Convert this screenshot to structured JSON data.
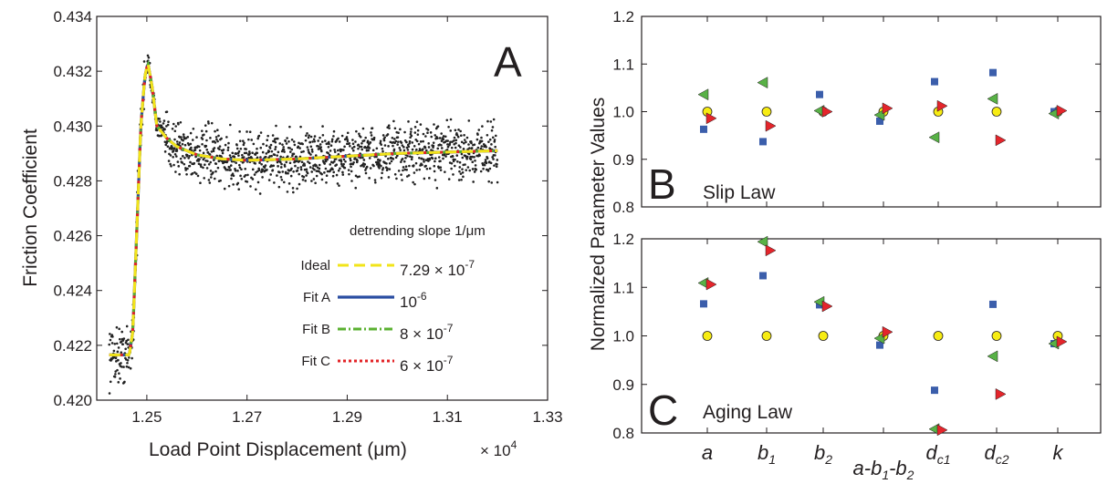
{
  "colors": {
    "ideal": "#f2e41a",
    "fitA": "#2b4ea2",
    "fitB": "#5ab030",
    "fitC": "#e32226",
    "data_points": "#222222",
    "ideal_marker": "#f7ec13",
    "blue_marker": "#3b5eab",
    "green_marker": "#58b146",
    "red_marker": "#e4252b"
  },
  "chart_data": [
    {
      "type": "line",
      "panel": "A",
      "xlabel": "Load Point Displacement (μm)",
      "x_multiplier": "× 10^4",
      "ylabel": "Friction Coefficient",
      "xlim": [
        1.24,
        1.33
      ],
      "ylim": [
        0.42,
        0.434
      ],
      "xticks": [
        "1.25",
        "1.27",
        "1.29",
        "1.31",
        "1.33"
      ],
      "yticks": [
        "0.420",
        "0.422",
        "0.424",
        "0.426",
        "0.428",
        "0.430",
        "0.432",
        "0.434"
      ],
      "legend": {
        "header": "detrending slope 1/μm",
        "placement": "bottom-right",
        "entries": [
          {
            "name": "Ideal",
            "slope": "7.29 × 10",
            "exp": "-7"
          },
          {
            "name": "Fit A",
            "slope": "10",
            "exp": "-6"
          },
          {
            "name": "Fit B",
            "slope": "8 × 10",
            "exp": "-7"
          },
          {
            "name": "Fit C",
            "slope": "6 × 10",
            "exp": "-7"
          }
        ]
      },
      "model_curve": {
        "x": [
          1.2425,
          1.2465,
          1.2472,
          1.248,
          1.2488,
          1.2496,
          1.2502,
          1.251,
          1.252,
          1.254,
          1.256,
          1.26,
          1.265,
          1.27,
          1.28,
          1.29,
          1.3,
          1.31,
          1.32
        ],
        "y": [
          0.42165,
          0.42165,
          0.4225,
          0.4262,
          0.43,
          0.4318,
          0.4323,
          0.4315,
          0.43,
          0.42955,
          0.42925,
          0.42895,
          0.4288,
          0.42875,
          0.4288,
          0.4289,
          0.429,
          0.42905,
          0.4291
        ]
      },
      "measured_data": {
        "x_start": 1.2425,
        "x_end": 1.32,
        "noise_amplitude": 0.0005
      }
    },
    {
      "type": "scatter",
      "panel": "B",
      "title": "Slip Law",
      "ylabel": "Normalized Parameter Values",
      "ylim": [
        0.8,
        1.2
      ],
      "yticks": [
        "0.8",
        "0.9",
        "1.0",
        "1.1",
        "1.2"
      ],
      "categories": [
        "a",
        "b1",
        "b2",
        "a-b1-b2",
        "dc1",
        "dc2",
        "k"
      ],
      "series": [
        {
          "marker": "circle",
          "color": "ideal",
          "values": [
            1.0,
            1.0,
            1.0,
            1.0,
            1.0,
            1.0,
            1.0
          ]
        },
        {
          "marker": "square",
          "color": "blue",
          "values": [
            0.963,
            0.937,
            1.036,
            0.98,
            1.063,
            1.082,
            1.0
          ]
        },
        {
          "marker": "triangle-left",
          "color": "green",
          "values": [
            1.036,
            1.061,
            1.002,
            0.993,
            0.946,
            1.027,
            0.996
          ]
        },
        {
          "marker": "triangle-right",
          "color": "red",
          "values": [
            0.986,
            0.97,
            1.0,
            1.007,
            1.012,
            0.94,
            1.002
          ]
        }
      ]
    },
    {
      "type": "scatter",
      "panel": "C",
      "title": "Aging Law",
      "ylim": [
        0.8,
        1.2
      ],
      "yticks": [
        "0.8",
        "0.9",
        "1.0",
        "1.1",
        "1.2"
      ],
      "categories": [
        "a",
        "b1",
        "b2",
        "a-b1-b2",
        "dc1",
        "dc2",
        "k"
      ],
      "series": [
        {
          "marker": "circle",
          "color": "ideal",
          "values": [
            1.0,
            1.0,
            1.0,
            1.0,
            1.0,
            1.0,
            1.0
          ]
        },
        {
          "marker": "square",
          "color": "blue",
          "values": [
            1.066,
            1.124,
            1.064,
            0.981,
            0.888,
            1.065,
            0.984
          ]
        },
        {
          "marker": "triangle-left",
          "color": "green",
          "values": [
            1.109,
            1.194,
            1.07,
            0.995,
            0.808,
            0.958,
            0.984
          ]
        },
        {
          "marker": "triangle-right",
          "color": "red",
          "values": [
            1.106,
            1.176,
            1.061,
            1.008,
            0.806,
            0.88,
            0.988
          ]
        }
      ]
    }
  ],
  "labels": {
    "panelA": "A",
    "panelB": "B",
    "panelC": "C",
    "slipLaw": "Slip Law",
    "agingLaw": "Aging Law",
    "xlabelA": "Load Point Displacement (μm)",
    "xmult": "× 10",
    "xmultExp": "4",
    "ylabelA": "Friction Coefficient",
    "ylabelRight": "Normalized Parameter Values",
    "legendHeader": "detrending slope 1/μm"
  },
  "category_labels": [
    {
      "main": "a",
      "sub": ""
    },
    {
      "main": "b",
      "sub": "1"
    },
    {
      "main": "b",
      "sub": "2"
    },
    {
      "main": "a-b",
      "sub": "1",
      "main2": "-b",
      "sub2": "2"
    },
    {
      "main": "d",
      "sub": "c1"
    },
    {
      "main": "d",
      "sub": "c2"
    },
    {
      "main": "k",
      "sub": ""
    }
  ]
}
